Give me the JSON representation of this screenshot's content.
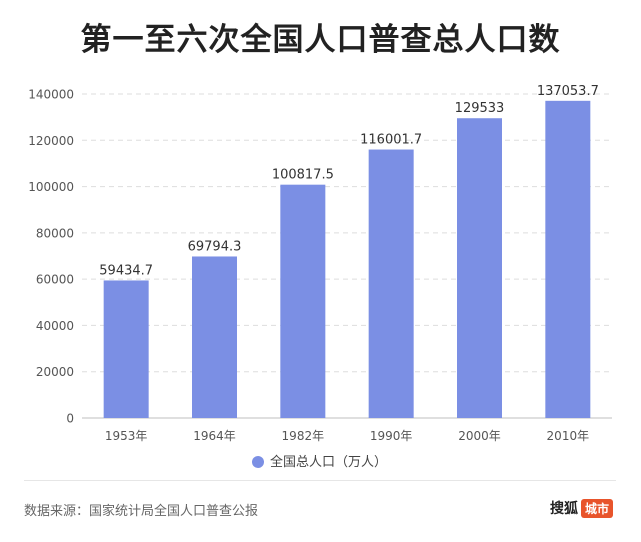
{
  "chart_data": {
    "type": "bar",
    "title": "第一至六次全国人口普查总人口数",
    "categories": [
      "1953年",
      "1964年",
      "1982年",
      "1990年",
      "2000年",
      "2010年"
    ],
    "series": [
      {
        "name": "全国总人口（万人）",
        "values": [
          59434.7,
          69794.3,
          100817.5,
          116001.7,
          129533,
          137053.7
        ],
        "color": "#7b8fe4"
      }
    ],
    "value_labels": [
      "59434.7",
      "69794.3",
      "100817.5",
      "116001.7",
      "129533",
      "137053.7"
    ],
    "ylim": [
      0,
      140000
    ],
    "yticks": [
      0,
      20000,
      40000,
      60000,
      80000,
      100000,
      120000,
      140000
    ],
    "grid": true,
    "legend_position": "bottom"
  },
  "footer": {
    "source": "数据来源：国家统计局全国人口普查公报",
    "brand": "搜狐",
    "brand_tag": "城市"
  }
}
